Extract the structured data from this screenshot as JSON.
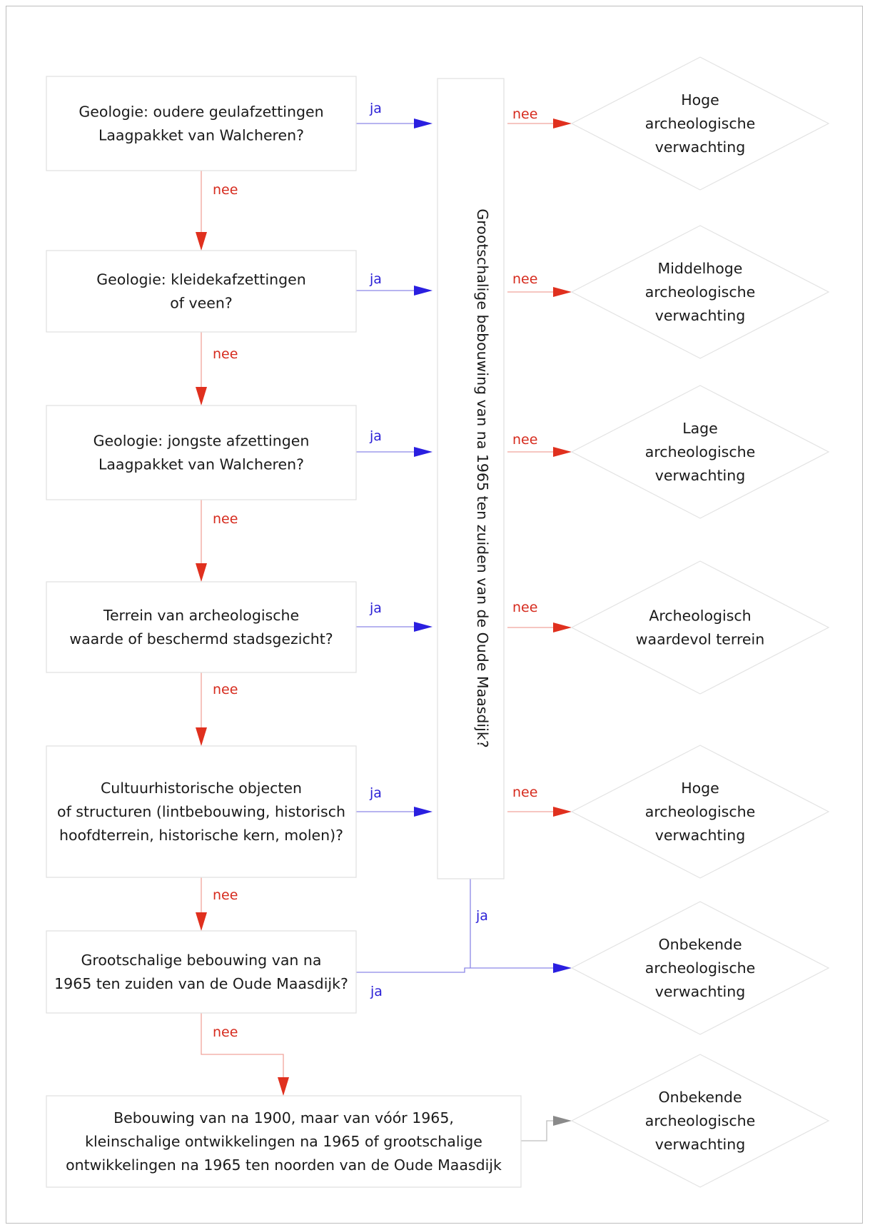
{
  "questions": [
    {
      "lines": [
        "Geologie: oudere geulafzettingen",
        "Laagpakket van Walcheren?"
      ]
    },
    {
      "lines": [
        "Geologie: kleidekafzettingen",
        "of veen?"
      ]
    },
    {
      "lines": [
        "Geologie: jongste afzettingen",
        "Laagpakket van Walcheren?"
      ]
    },
    {
      "lines": [
        "Terrein van archeologische",
        "waarde of beschermd stadsgezicht?"
      ]
    },
    {
      "lines": [
        "Cultuurhistorische objecten",
        "of structuren (lintbebouwing, historisch",
        "hoofdterrein, historische kern, molen)?"
      ]
    },
    {
      "lines": [
        "Grootschalige bebouwing van na",
        "1965 ten zuiden van de Oude Maasdijk?"
      ]
    },
    {
      "lines": [
        "Bebouwing van na 1900, maar van vóór 1965,",
        "kleinschalige ontwikkelingen na 1965 of grootschalige",
        "ontwikkelingen na 1965 ten noorden van de Oude Maasdijk"
      ]
    }
  ],
  "central_question": "Grootschalige bebouwing van na 1965 ten zuiden van de Oude Maasdijk?",
  "outcomes": [
    {
      "lines": [
        "Hoge",
        "archeologische",
        "verwachting"
      ]
    },
    {
      "lines": [
        "Middelhoge",
        "archeologische",
        "verwachting"
      ]
    },
    {
      "lines": [
        "Lage",
        "archeologische",
        "verwachting"
      ]
    },
    {
      "lines": [
        "Archeologisch",
        "waardevol terrein"
      ]
    },
    {
      "lines": [
        "Hoge",
        "archeologische",
        "verwachting"
      ]
    },
    {
      "lines": [
        "Onbekende",
        "archeologische",
        "verwachting"
      ]
    },
    {
      "lines": [
        "Onbekende",
        "archeologische",
        "verwachting"
      ]
    }
  ],
  "labels": {
    "yes": "ja",
    "no": "nee"
  },
  "colors": {
    "yes": "#2a1fe0",
    "no": "#e0301e",
    "neutral": "#8a8a8a"
  }
}
